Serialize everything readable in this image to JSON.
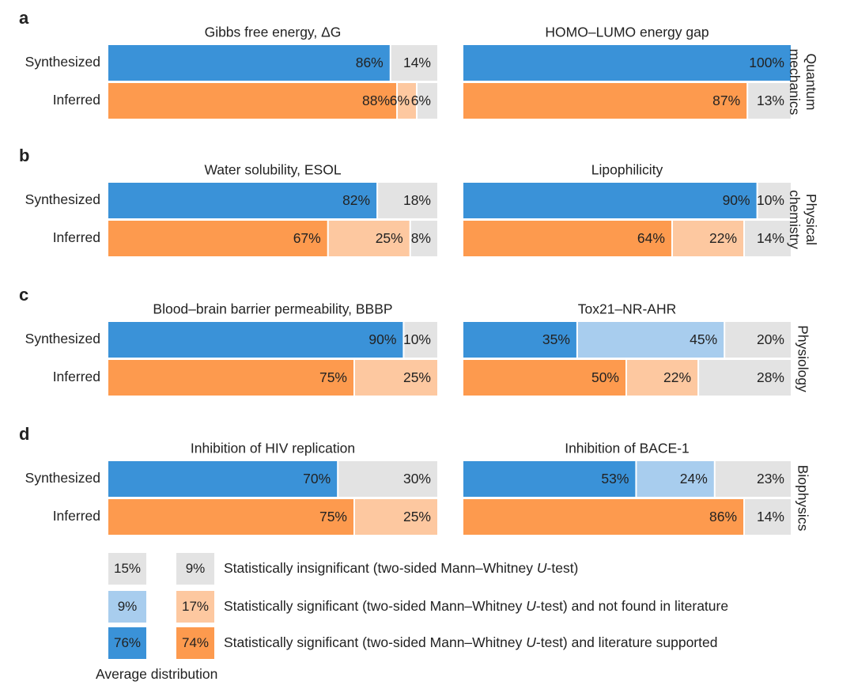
{
  "colors": {
    "insignificant": "#e3e3e3",
    "sig_not_lit_synth": "#a8cdee",
    "sig_lit_synth": "#3a92d8",
    "sig_not_lit_inferred": "#fdc8a0",
    "sig_lit_inferred": "#fd9a4e"
  },
  "chart_data": {
    "type": "bar",
    "orientation": "horizontal-stacked-percent",
    "row_labels": [
      "Synthesized",
      "Inferred"
    ],
    "series_order": [
      "sig_lit",
      "sig_not_lit",
      "insignificant"
    ],
    "sections": [
      {
        "letter": "a",
        "side_label": [
          "Quantum",
          "mechanics"
        ],
        "panels": [
          {
            "title": "Gibbs free energy, ΔG",
            "synthesized": {
              "sig_lit": 86,
              "sig_not_lit": 0,
              "insignificant": 14
            },
            "inferred": {
              "sig_lit": 88,
              "sig_not_lit": 6,
              "insignificant": 6
            }
          },
          {
            "title": "HOMO–LUMO energy gap",
            "synthesized": {
              "sig_lit": 100,
              "sig_not_lit": 0,
              "insignificant": 0
            },
            "inferred": {
              "sig_lit": 87,
              "sig_not_lit": 0,
              "insignificant": 13
            }
          }
        ]
      },
      {
        "letter": "b",
        "side_label": [
          "Physical",
          "chemistry"
        ],
        "panels": [
          {
            "title": "Water solubility, ESOL",
            "synthesized": {
              "sig_lit": 82,
              "sig_not_lit": 0,
              "insignificant": 18
            },
            "inferred": {
              "sig_lit": 67,
              "sig_not_lit": 25,
              "insignificant": 8
            }
          },
          {
            "title": "Lipophilicity",
            "synthesized": {
              "sig_lit": 90,
              "sig_not_lit": 0,
              "insignificant": 10
            },
            "inferred": {
              "sig_lit": 64,
              "sig_not_lit": 22,
              "insignificant": 14
            }
          }
        ]
      },
      {
        "letter": "c",
        "side_label": [
          "Physiology"
        ],
        "panels": [
          {
            "title": "Blood–brain barrier permeability, BBBP",
            "synthesized": {
              "sig_lit": 90,
              "sig_not_lit": 0,
              "insignificant": 10
            },
            "inferred": {
              "sig_lit": 75,
              "sig_not_lit": 25,
              "insignificant": 0
            }
          },
          {
            "title": "Tox21–NR-AHR",
            "synthesized": {
              "sig_lit": 35,
              "sig_not_lit": 45,
              "insignificant": 20
            },
            "inferred": {
              "sig_lit": 50,
              "sig_not_lit": 22,
              "insignificant": 28
            }
          }
        ]
      },
      {
        "letter": "d",
        "side_label": [
          "Biophysics"
        ],
        "panels": [
          {
            "title": "Inhibition of HIV replication",
            "synthesized": {
              "sig_lit": 70,
              "sig_not_lit": 0,
              "insignificant": 30
            },
            "inferred": {
              "sig_lit": 75,
              "sig_not_lit": 25,
              "insignificant": 0
            }
          },
          {
            "title": "Inhibition of BACE-1",
            "synthesized": {
              "sig_lit": 53,
              "sig_not_lit": 24,
              "insignificant": 23
            },
            "inferred": {
              "sig_lit": 86,
              "sig_not_lit": 0,
              "insignificant": 14
            }
          }
        ]
      }
    ]
  },
  "legend": {
    "rows": [
      {
        "synth_value": "15%",
        "inferred_value": "9%",
        "label_pre": "Statistically insignificant (two-sided Mann–Whitney ",
        "label_italic": "U",
        "label_post": "-test)"
      },
      {
        "synth_value": "9%",
        "inferred_value": "17%",
        "label_pre": "Statistically significant (two-sided Mann–Whitney ",
        "label_italic": "U",
        "label_post": "-test) and not found in literature"
      },
      {
        "synth_value": "76%",
        "inferred_value": "74%",
        "label_pre": "Statistically significant (two-sided Mann–Whitney ",
        "label_italic": "U",
        "label_post": "-test) and literature supported"
      }
    ],
    "caption": "Average distribution"
  }
}
